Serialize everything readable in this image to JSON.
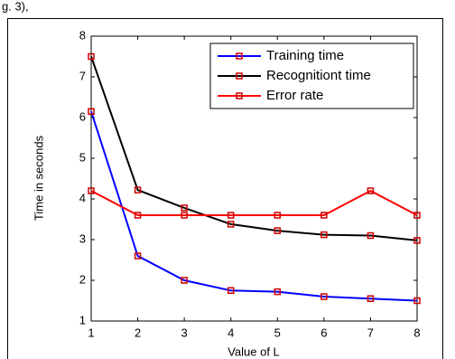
{
  "chart_data": {
    "type": "line",
    "annotation": "g. 3),",
    "xlabel": "Value of L",
    "ylabel": "Time in seconds",
    "x": [
      1,
      2,
      3,
      4,
      5,
      6,
      7,
      8
    ],
    "series": [
      {
        "name": "Training time",
        "color": "#0000ff",
        "values": [
          6.15,
          2.6,
          2.0,
          1.75,
          1.72,
          1.6,
          1.55,
          1.5
        ]
      },
      {
        "name": "Recognitiont time",
        "color": "#000000",
        "values": [
          7.5,
          4.22,
          3.78,
          3.38,
          3.22,
          3.12,
          3.1,
          2.98
        ]
      },
      {
        "name": "Error rate",
        "color": "#ff0000",
        "values": [
          4.2,
          3.6,
          3.6,
          3.6,
          3.6,
          3.6,
          4.2,
          3.6
        ]
      }
    ],
    "marker_color": "#cc0000",
    "xlim": [
      1,
      8
    ],
    "xticks": [
      1,
      2,
      3,
      4,
      5,
      6,
      7,
      8
    ],
    "ylim": [
      1,
      8
    ],
    "yticks": [
      1,
      2,
      3,
      4,
      5,
      6,
      7,
      8
    ],
    "grid": false,
    "legend": "upper-right"
  }
}
